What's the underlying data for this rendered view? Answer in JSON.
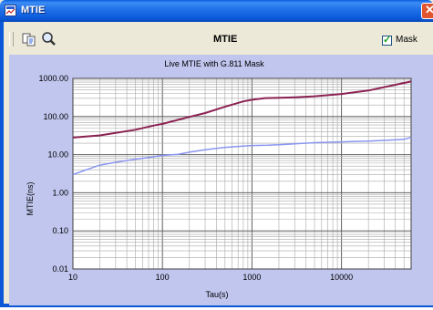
{
  "window": {
    "title": "MTIE"
  },
  "toolbar": {
    "title": "MTIE",
    "mask_label": "Mask",
    "mask_checked": true
  },
  "icons": {
    "app": "app-icon",
    "close": "close-icon",
    "copy": "copy-icon",
    "zoom": "magnifier-icon",
    "check": "checkmark-icon"
  },
  "colors": {
    "mask_series": "#8b2252",
    "mtie_series": "#8a95f0",
    "plot_bg": "#ffffff",
    "chart_bg": "#c0c6ee",
    "title_bar": "#0a58d8"
  },
  "chart_data": {
    "type": "line",
    "title": "Live MTIE with G.811  Mask",
    "xlabel": "Tau(s)",
    "ylabel": "MTIE(ns)",
    "x_scale": "log",
    "y_scale": "log",
    "xlim": [
      10,
      60000
    ],
    "ylim": [
      0.01,
      1000
    ],
    "x_ticks": [
      10,
      100,
      1000,
      10000
    ],
    "x_tick_labels": [
      "10",
      "100",
      "1000",
      "10000"
    ],
    "y_ticks": [
      0.01,
      0.1,
      1,
      10,
      100,
      1000
    ],
    "y_tick_labels": [
      "0.01",
      "0.10",
      "1.00",
      "10.00",
      "100.00",
      "1000.00"
    ],
    "grid": true,
    "legend": "none",
    "series": [
      {
        "color": "#8b2252",
        "x": [
          10,
          20,
          30,
          50,
          80,
          100,
          150,
          200,
          300,
          500,
          800,
          1000,
          1400,
          2000,
          3000,
          5000,
          10000,
          20000,
          40000,
          60000
        ],
        "y": [
          28,
          32,
          37,
          45,
          58,
          64,
          82,
          98,
          123,
          180,
          250,
          275,
          305,
          310,
          320,
          340,
          390,
          480,
          680,
          830
        ]
      },
      {
        "color": "#8a95f0",
        "x": [
          10,
          15,
          20,
          30,
          50,
          70,
          100,
          150,
          200,
          300,
          500,
          800,
          1000,
          1500,
          2000,
          3000,
          5000,
          10000,
          20000,
          40000,
          50000,
          60000
        ],
        "y": [
          3.0,
          4.2,
          5.3,
          6.3,
          7.6,
          8.4,
          9.5,
          10.2,
          11.6,
          13.4,
          15.5,
          16.7,
          17.3,
          17.6,
          18.1,
          19.3,
          20.6,
          21.6,
          22.6,
          24.4,
          25.2,
          28.5
        ]
      }
    ]
  }
}
